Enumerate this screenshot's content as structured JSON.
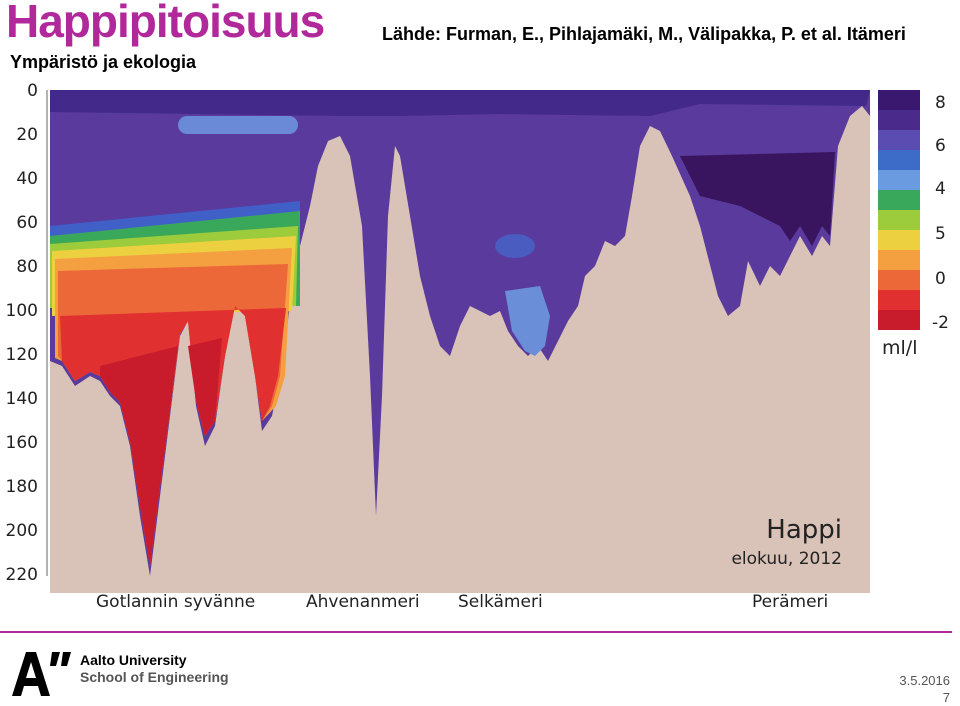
{
  "slide": {
    "title": "Happipitoisuus",
    "source": "Lähde: Furman, E., Pihlajamäki, M., Välipakka, P. et al. Itämeri",
    "subtitle": "Ympäristö ja ekologia"
  },
  "figure": {
    "depth_labels": [
      "0",
      "20",
      "40",
      "60",
      "80",
      "100",
      "120",
      "140",
      "160",
      "180",
      "200",
      "220"
    ],
    "regions": [
      "Gotlannin syvänne",
      "Ahvenanmeri",
      "Selkämeri",
      "Perämeri"
    ],
    "caption_title": "Happi",
    "caption_date": "elokuu, 2012",
    "legend": {
      "labels": [
        "8",
        "6",
        "4",
        "5",
        "0",
        "-2"
      ],
      "unit": "ml/l",
      "colors": [
        "#3a1870",
        "#4a2b8c",
        "#5a4cb0",
        "#3c6cc8",
        "#6a9ae0",
        "#3aa85a",
        "#9ccc3c",
        "#ecd040",
        "#f4a040",
        "#ec6838",
        "#e03030",
        "#c81c2c"
      ]
    }
  },
  "footer": {
    "university": "Aalto University",
    "school": "School of Engineering",
    "date": "3.5.2016",
    "page": "7"
  }
}
